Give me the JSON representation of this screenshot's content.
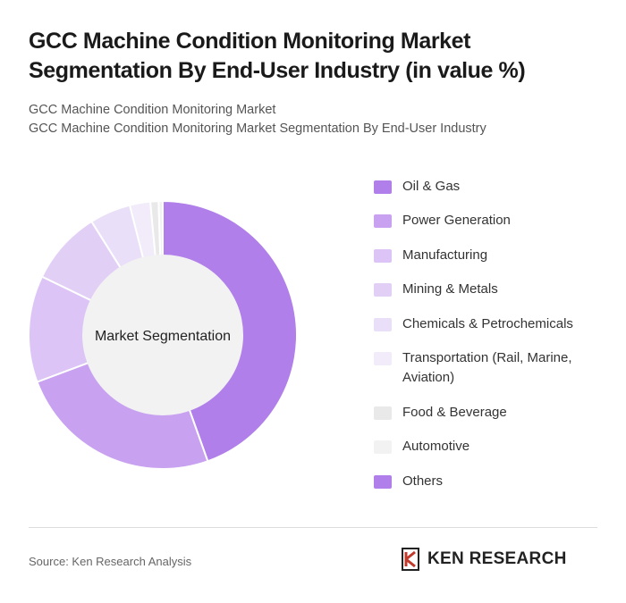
{
  "header": {
    "title": "GCC Machine Condition Monitoring Market Segmentation By End-User Industry (in value %)",
    "subtitle_line1": "GCC Machine Condition Monitoring Market",
    "subtitle_line2": "GCC Machine Condition Monitoring Market Segmentation By End-User Industry"
  },
  "chart_data": {
    "type": "pie",
    "style": "donut",
    "center_label": "Market Segmentation",
    "legend_position": "right",
    "categories": [
      "Oil & Gas",
      "Power Generation",
      "Manufacturing",
      "Mining & Metals",
      "Chemicals & Petrochemicals",
      "Transportation (Rail, Marine, Aviation)",
      "Food & Beverage",
      "Automotive",
      "Others"
    ],
    "values": [
      45,
      25,
      13,
      9,
      5,
      2.5,
      1,
      0.5,
      0
    ],
    "colors": [
      "#b07fe9",
      "#c8a2f0",
      "#dcc4f6",
      "#e2cff6",
      "#eadff8",
      "#f1ebfa",
      "#e9e9e9",
      "#f2f2f2",
      "#b07fe9"
    ]
  },
  "footer": {
    "source": "Source: Ken Research Analysis",
    "logo_text": "KEN RESEARCH"
  }
}
